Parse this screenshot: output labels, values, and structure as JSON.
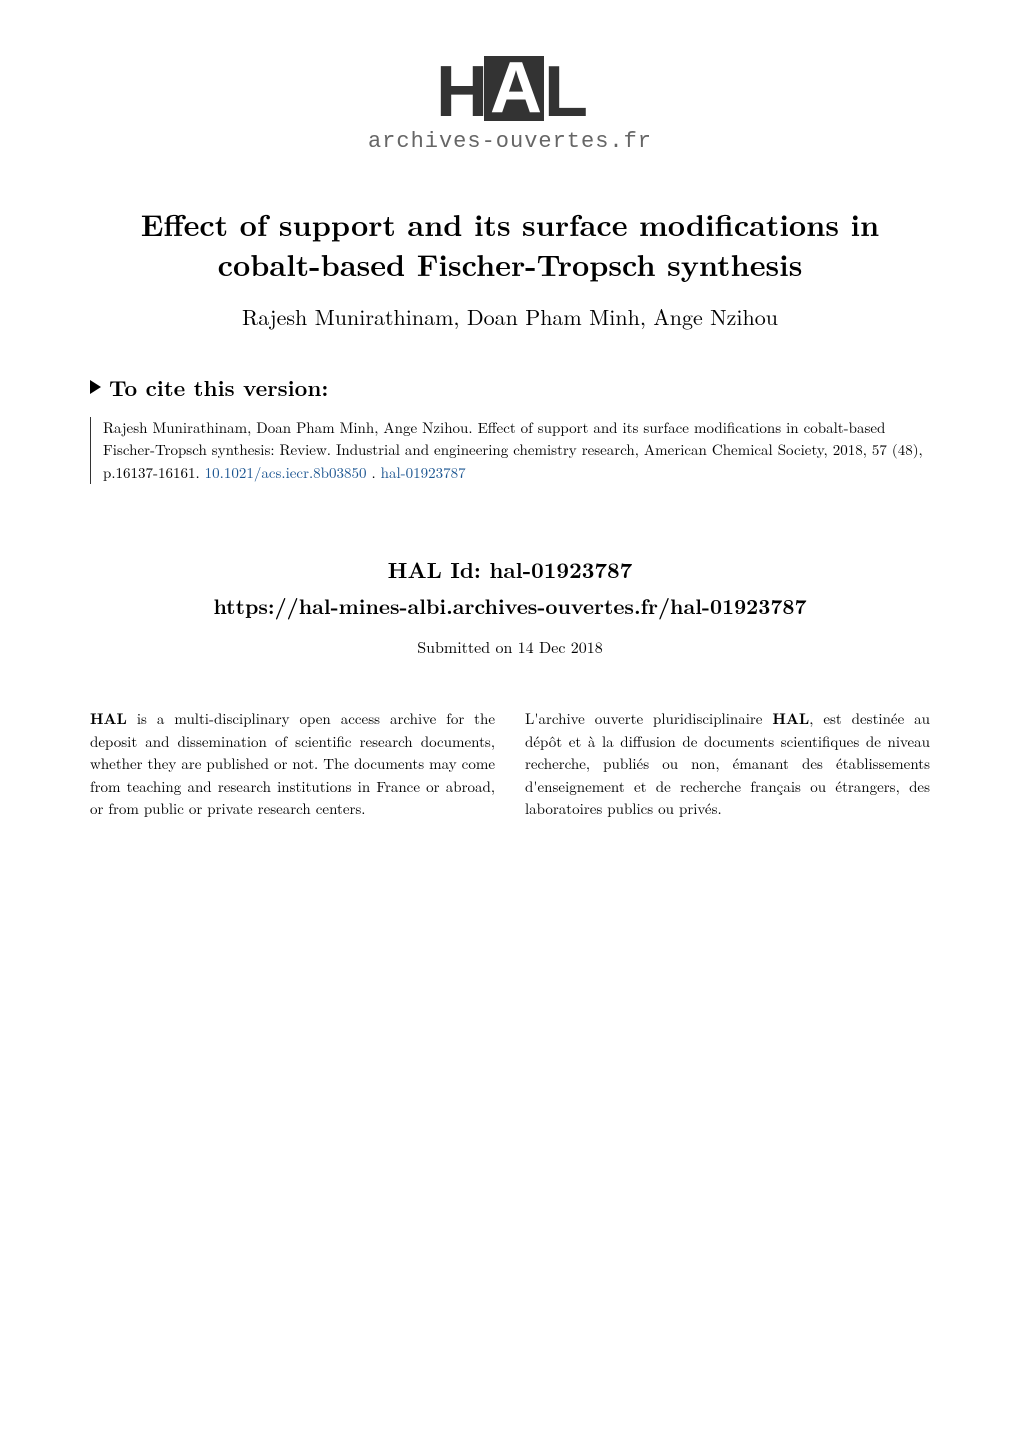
{
  "logo": {
    "text": "HAL",
    "subtitle": "archives-ouvertes.fr"
  },
  "title": "Effect of support and its surface modifications in cobalt-based Fischer-Tropsch synthesis",
  "authors": "Rajesh Munirathinam, Doan Pham Minh, Ange Nzihou",
  "cite": {
    "header": "To cite this version:",
    "body": "Rajesh Munirathinam, Doan Pham Minh, Ange Nzihou. Effect of support and its surface modifications in cobalt-based Fischer-Tropsch synthesis: Review. Industrial and engineering chemistry research, American Chemical Society, 2018, 57 (48), p.16137-16161. ",
    "doi": "10.1021/acs.iecr.8b03850",
    "sep": " . ",
    "halref": "hal-01923787"
  },
  "halid": {
    "label": "HAL Id: hal-01923787",
    "url": "https://hal-mines-albi.archives-ouvertes.fr/hal-01923787",
    "submitted": "Submitted on 14 Dec 2018"
  },
  "description": {
    "left_bold": "HAL",
    "left_rest": " is a multi-disciplinary open access archive for the deposit and dissemination of scientific research documents, whether they are published or not. The documents may come from teaching and research institutions in France or abroad, or from public or private research centers.",
    "right_pre": "L'archive ouverte pluridisciplinaire ",
    "right_bold": "HAL",
    "right_post": ", est destinée au dépôt et à la diffusion de documents scientifiques de niveau recherche, publiés ou non, émanant des établissements d'enseignement et de recherche français ou étrangers, des laboratoires publics ou privés."
  },
  "colors": {
    "background": "#ffffff",
    "text": "#000000",
    "logo_dark": "#333333",
    "logo_sub": "#666666",
    "link": "#1a5490"
  },
  "typography": {
    "title_size": 30,
    "author_size": 22,
    "cite_header_size": 22,
    "cite_body_size": 15,
    "halid_label_size": 22,
    "halid_url_size": 21,
    "submitted_size": 16,
    "desc_size": 15
  }
}
